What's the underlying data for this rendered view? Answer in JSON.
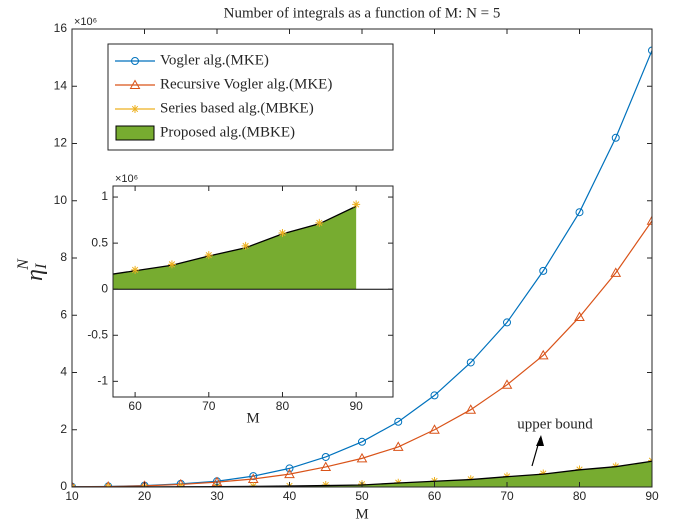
{
  "chart_data": [
    {
      "type": "line",
      "title": "Number of integrals as a function of M: N = 5",
      "x_label": "M",
      "y_label": "η",
      "y_label_sub": "I",
      "y_label_sup": "N",
      "y_multiplier": "×10⁶",
      "annotation": "upper bound",
      "legend": "upper left",
      "xlim": [
        10,
        90
      ],
      "xticks": [
        10,
        20,
        30,
        40,
        50,
        60,
        70,
        80,
        90
      ],
      "ylim": [
        0,
        16
      ],
      "yticks": [
        0,
        2,
        4,
        6,
        8,
        10,
        12,
        14,
        16
      ],
      "x": [
        10,
        15,
        20,
        25,
        30,
        35,
        40,
        45,
        50,
        55,
        60,
        65,
        70,
        75,
        80,
        85,
        90
      ],
      "series": [
        {
          "name": "Vogler alg.(MKE)",
          "color": "#0072bd",
          "kind": "line",
          "marker": "circle",
          "values": [
            0.01,
            0.02,
            0.05,
            0.11,
            0.2,
            0.38,
            0.65,
            1.05,
            1.58,
            2.28,
            3.2,
            4.35,
            5.75,
            7.55,
            9.6,
            12.2,
            15.25
          ]
        },
        {
          "name": "Recursive Vogler alg.(MKE)",
          "color": "#d95319",
          "kind": "line",
          "marker": "triangle",
          "values": [
            0.005,
            0.015,
            0.04,
            0.09,
            0.17,
            0.28,
            0.45,
            0.7,
            1.0,
            1.4,
            2.0,
            2.7,
            3.57,
            4.6,
            5.94,
            7.48,
            9.3
          ]
        },
        {
          "name": "Series based alg.(MBKE)",
          "color": "#edb120",
          "kind": "none",
          "marker": "star",
          "values": [
            0.0005,
            0.001,
            0.004,
            0.008,
            0.015,
            0.03,
            0.04,
            0.07,
            0.1,
            0.15,
            0.21,
            0.27,
            0.37,
            0.47,
            0.61,
            0.72,
            0.92
          ]
        },
        {
          "name": "Proposed alg.(MBKE)",
          "color": "#77ac30",
          "kind": "area",
          "marker": "none",
          "values": [
            0,
            0.001,
            0.003,
            0.007,
            0.013,
            0.022,
            0.035,
            0.05,
            0.07,
            0.14,
            0.2,
            0.26,
            0.36,
            0.45,
            0.6,
            0.71,
            0.9
          ]
        }
      ]
    },
    {
      "type": "line",
      "x_label": "M",
      "y_multiplier": "×10⁶",
      "xlim": [
        57,
        95
      ],
      "xticks": [
        60,
        70,
        80,
        90
      ],
      "ylim": [
        -1.17,
        1.12
      ],
      "yticks": [
        -1,
        -0.5,
        0,
        0.5,
        1
      ],
      "x": [
        55,
        60,
        65,
        70,
        75,
        80,
        85,
        90
      ],
      "series": [
        {
          "color": "#77ac30",
          "kind": "area",
          "marker": "none",
          "values": [
            0.14,
            0.2,
            0.26,
            0.36,
            0.45,
            0.6,
            0.71,
            0.9
          ]
        },
        {
          "color": "#edb120",
          "kind": "none",
          "marker": "star",
          "values": [
            0.15,
            0.21,
            0.27,
            0.37,
            0.47,
            0.61,
            0.72,
            0.92
          ]
        }
      ]
    }
  ]
}
